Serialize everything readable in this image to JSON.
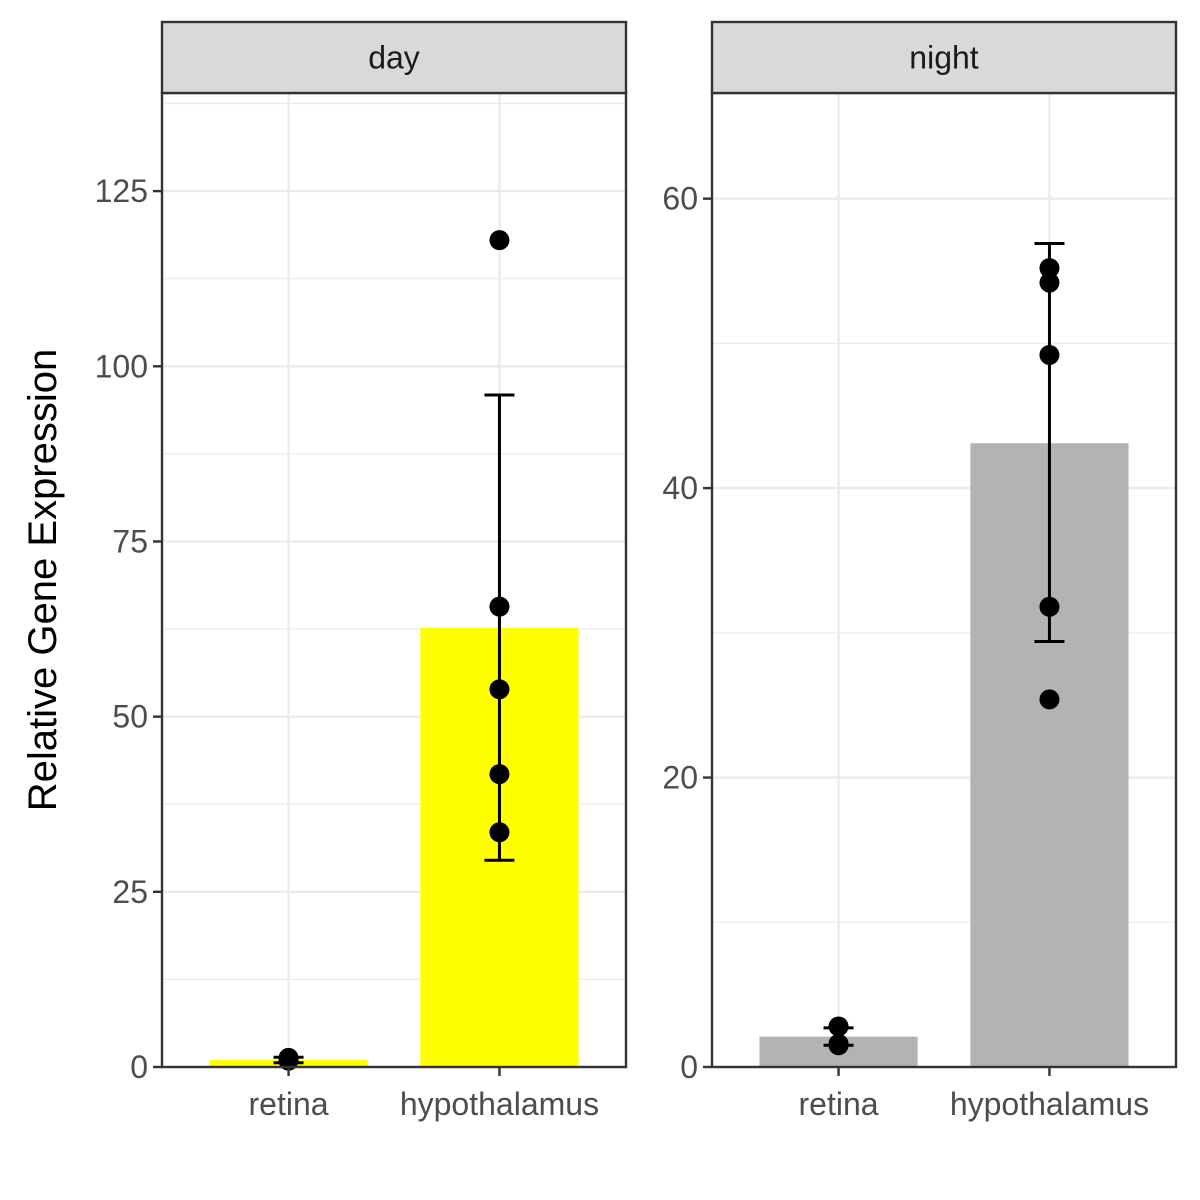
{
  "chart_data": {
    "type": "bar",
    "ylabel": "Relative Gene Expression",
    "xlabel": "",
    "grid": true,
    "facets": [
      {
        "label": "day",
        "categories": [
          "retina",
          "hypothalamus"
        ],
        "ylim": [
          0,
          139
        ],
        "yticks": [
          0,
          25,
          50,
          75,
          100,
          125
        ],
        "ytick_labels": [
          "0",
          "25",
          "50",
          "75",
          "100",
          "125"
        ],
        "bar_color": "#FFFF00",
        "bars": [
          {
            "category": "retina",
            "mean": 1.0,
            "err_low": 0.6,
            "err_high": 1.4,
            "points": [
              1.0,
              1.3,
              0.9
            ]
          },
          {
            "category": "hypothalamus",
            "mean": 62.7,
            "err_low": 29.5,
            "err_high": 95.9,
            "points": [
              118.0,
              65.7,
              53.9,
              41.8,
              33.5
            ]
          }
        ]
      },
      {
        "label": "night",
        "categories": [
          "retina",
          "hypothalamus"
        ],
        "ylim": [
          0,
          67.3
        ],
        "yticks": [
          0,
          20,
          40,
          60
        ],
        "ytick_labels": [
          "0",
          "20",
          "40",
          "60"
        ],
        "bar_color": "#B3B3B3",
        "bars": [
          {
            "category": "retina",
            "mean": 2.1,
            "err_low": 1.5,
            "err_high": 2.7,
            "points": [
              2.8,
              1.6,
              1.5
            ]
          },
          {
            "category": "hypothalamus",
            "mean": 43.1,
            "err_low": 29.4,
            "err_high": 56.9,
            "points": [
              55.2,
              54.2,
              49.2,
              31.8,
              25.4
            ]
          }
        ]
      }
    ]
  }
}
